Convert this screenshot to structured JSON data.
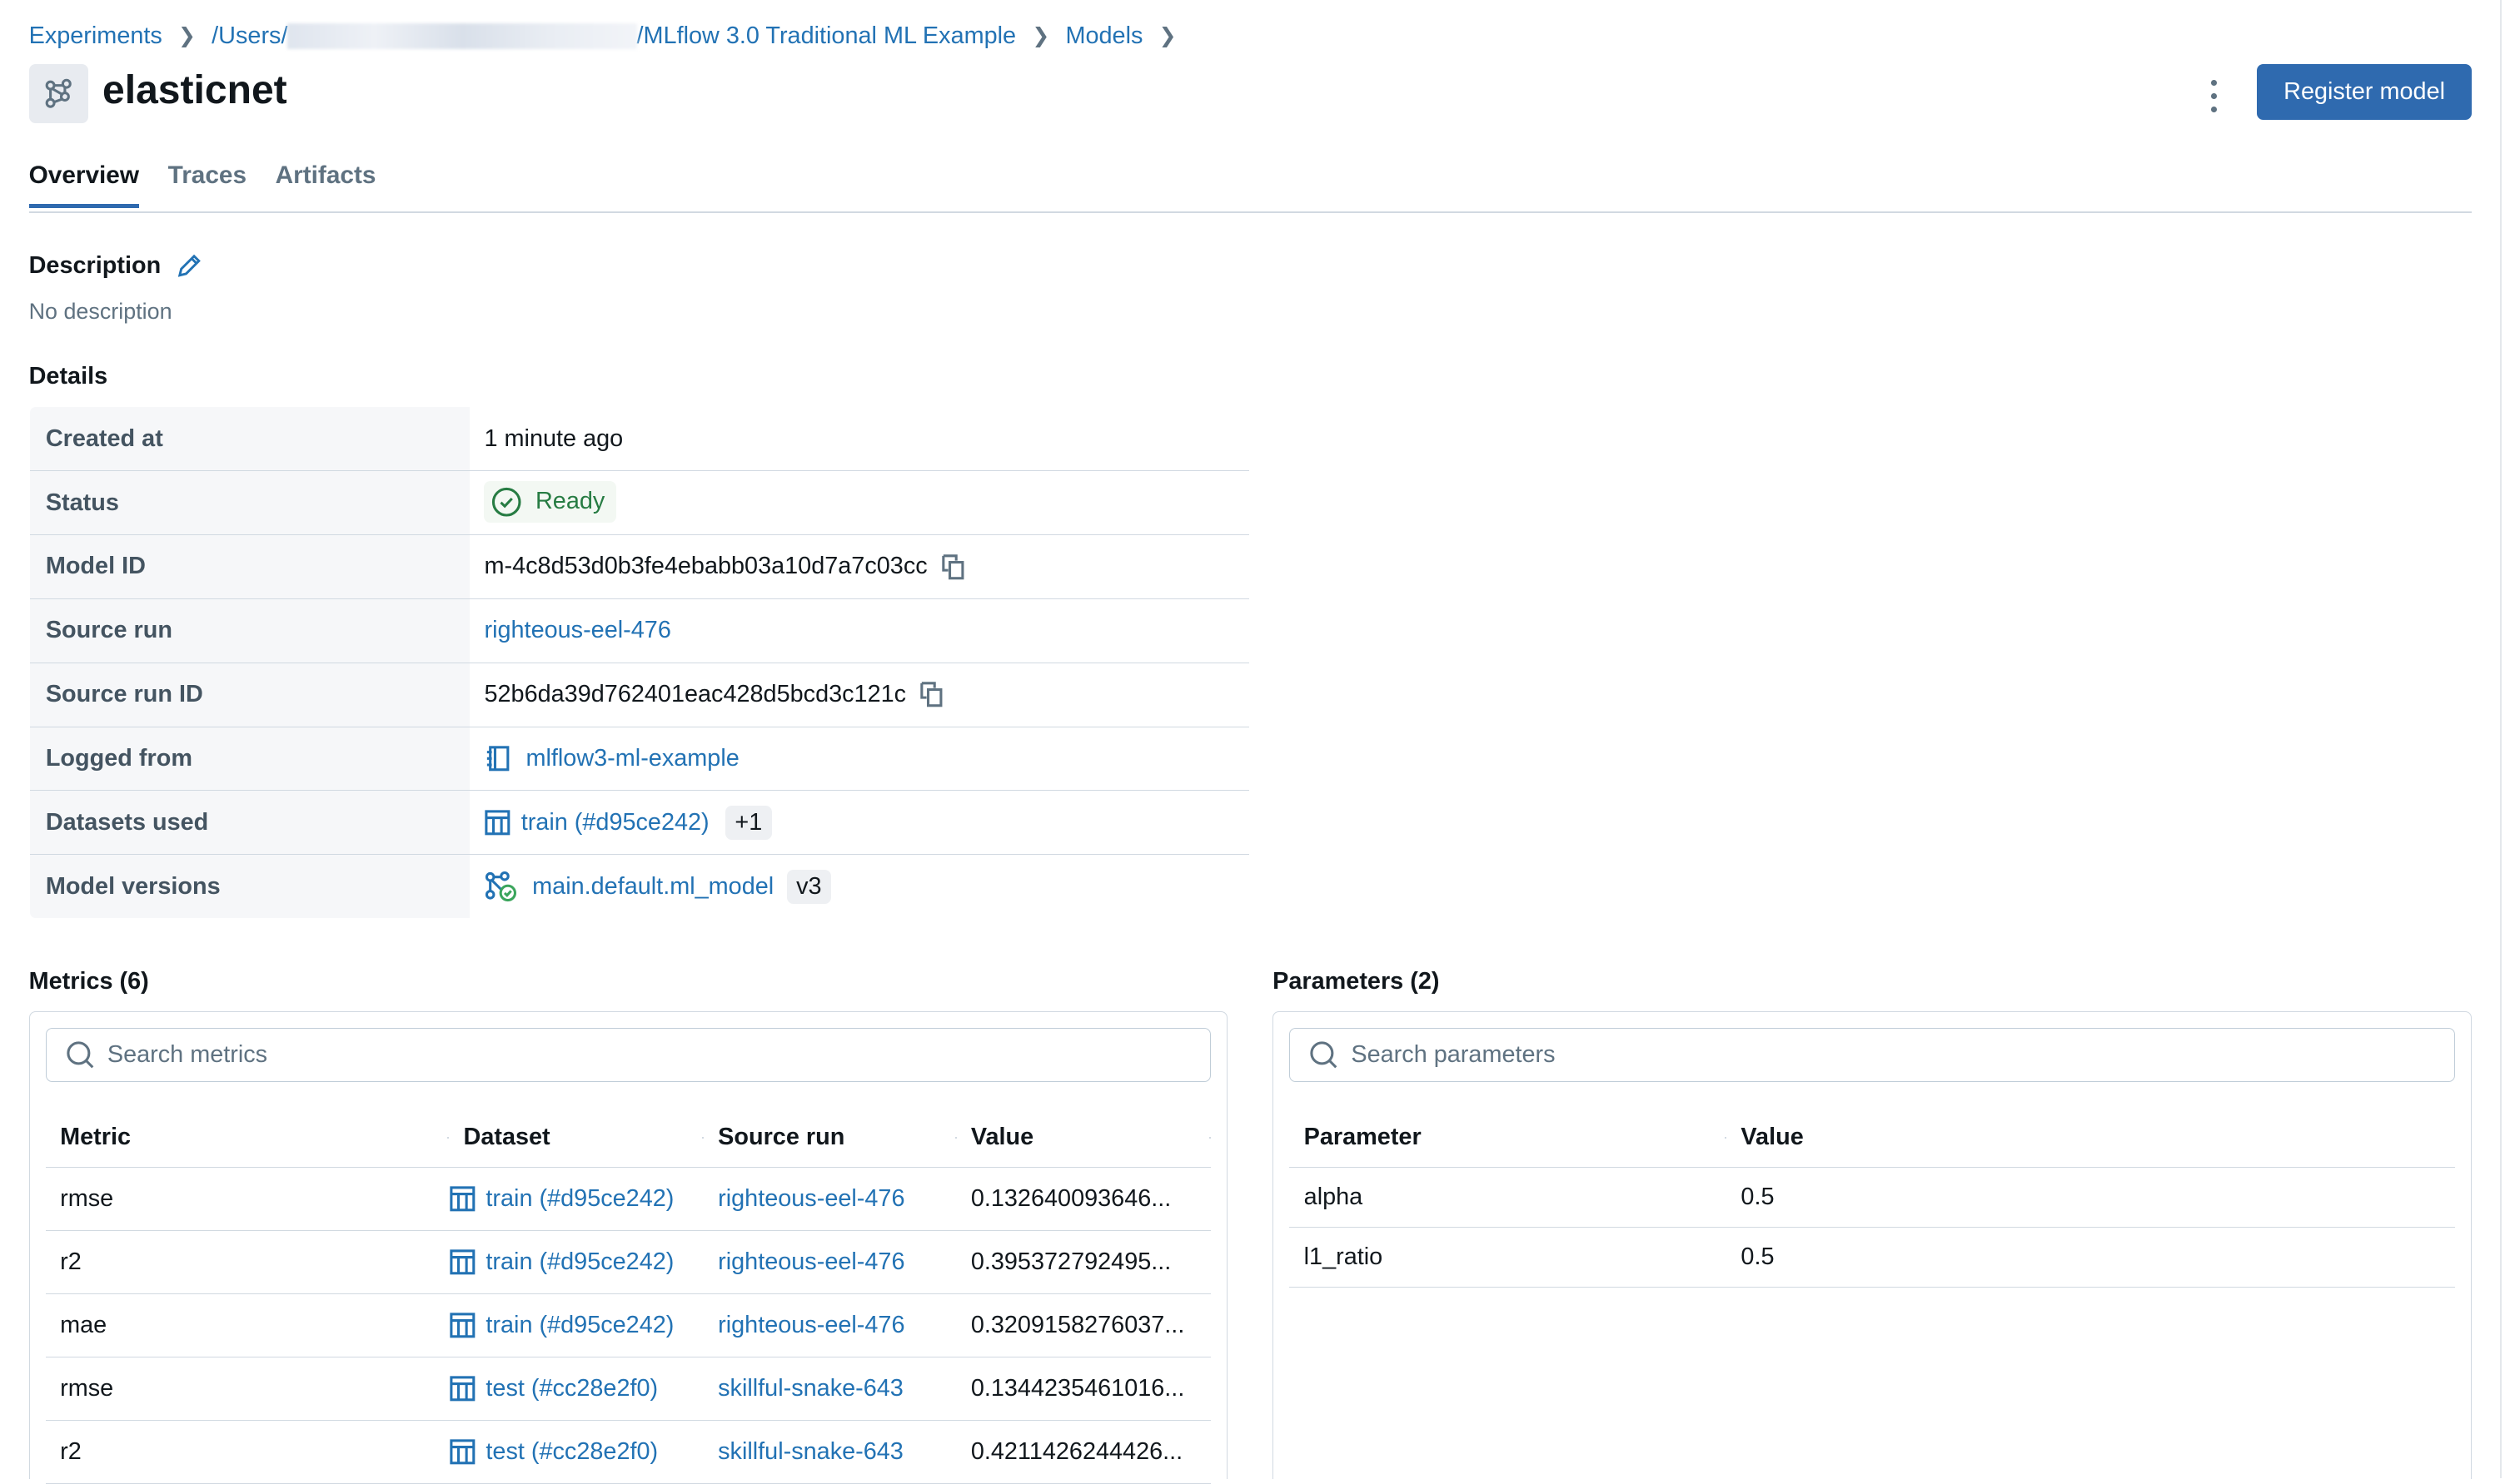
{
  "breadcrumb": {
    "items": [
      "Experiments",
      "/Users/",
      "/MLflow 3.0 Traditional ML Example",
      "Models"
    ]
  },
  "header": {
    "title": "elasticnet",
    "register_label": "Register model"
  },
  "tabs": [
    {
      "label": "Overview",
      "active": true
    },
    {
      "label": "Traces"
    },
    {
      "label": "Artifacts"
    }
  ],
  "description": {
    "heading": "Description",
    "text": "No description"
  },
  "details": {
    "heading": "Details",
    "created_at": {
      "label": "Created at",
      "value": "1 minute ago"
    },
    "status": {
      "label": "Status",
      "value": "Ready"
    },
    "model_id": {
      "label": "Model ID",
      "value": "m-4c8d53d0b3fe4ebabb03a10d7a7c03cc"
    },
    "source_run": {
      "label": "Source run",
      "value": "righteous-eel-476"
    },
    "source_run_id": {
      "label": "Source run ID",
      "value": "52b6da39d762401eac428d5bcd3c121c"
    },
    "logged_from": {
      "label": "Logged from",
      "value": "mlflow3-ml-example"
    },
    "datasets_used": {
      "label": "Datasets used",
      "value": "train (#d95ce242)",
      "extra": "+1"
    },
    "model_versions": {
      "label": "Model versions",
      "value": "main.default.ml_model",
      "version": "v3"
    }
  },
  "metrics": {
    "heading": "Metrics (6)",
    "search_placeholder": "Search metrics",
    "columns": [
      "Metric",
      "Dataset",
      "Source run",
      "Value"
    ],
    "rows": [
      {
        "metric": "rmse",
        "dataset": "train (#d95ce242)",
        "run": "righteous-eel-476",
        "value": "0.132640093646..."
      },
      {
        "metric": "r2",
        "dataset": "train (#d95ce242)",
        "run": "righteous-eel-476",
        "value": "0.395372792495..."
      },
      {
        "metric": "mae",
        "dataset": "train (#d95ce242)",
        "run": "righteous-eel-476",
        "value": "0.3209158276037..."
      },
      {
        "metric": "rmse",
        "dataset": "test (#cc28e2f0)",
        "run": "skillful-snake-643",
        "value": "0.1344235461016..."
      },
      {
        "metric": "r2",
        "dataset": "test (#cc28e2f0)",
        "run": "skillful-snake-643",
        "value": "0.4211426244426..."
      }
    ]
  },
  "parameters": {
    "heading": "Parameters (2)",
    "search_placeholder": "Search parameters",
    "columns": [
      "Parameter",
      "Value"
    ],
    "rows": [
      {
        "name": "alpha",
        "value": "0.5"
      },
      {
        "name": "l1_ratio",
        "value": "0.5"
      }
    ]
  },
  "colors": {
    "accent": "#2f6aaf",
    "link": "#2272b4",
    "success": "#277c43"
  }
}
